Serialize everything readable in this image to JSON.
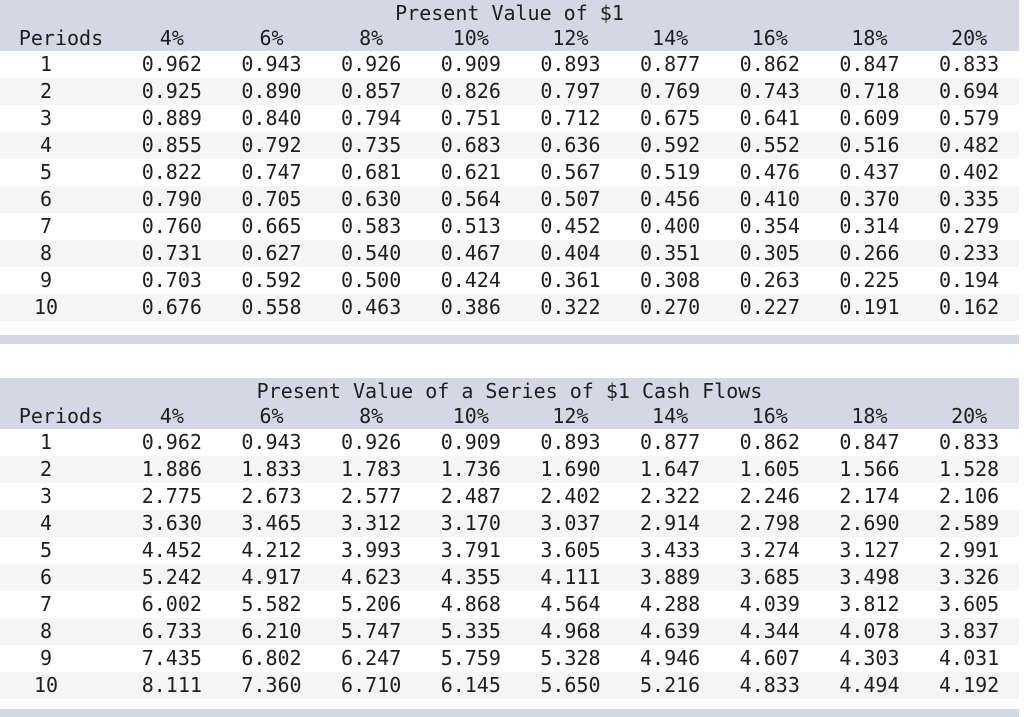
{
  "colors": {
    "header_bg": "#d4d8e4",
    "row_alt_bg": "#f5f5f6",
    "row_bg": "#ffffff",
    "text": "#1e1e1e"
  },
  "tables": [
    {
      "title": "Present Value of $1",
      "columns": [
        "Periods",
        "4%",
        "6%",
        "8%",
        "10%",
        "12%",
        "14%",
        "16%",
        "18%",
        "20%"
      ],
      "rows": [
        [
          "1",
          "0.962",
          "0.943",
          "0.926",
          "0.909",
          "0.893",
          "0.877",
          "0.862",
          "0.847",
          "0.833"
        ],
        [
          "2",
          "0.925",
          "0.890",
          "0.857",
          "0.826",
          "0.797",
          "0.769",
          "0.743",
          "0.718",
          "0.694"
        ],
        [
          "3",
          "0.889",
          "0.840",
          "0.794",
          "0.751",
          "0.712",
          "0.675",
          "0.641",
          "0.609",
          "0.579"
        ],
        [
          "4",
          "0.855",
          "0.792",
          "0.735",
          "0.683",
          "0.636",
          "0.592",
          "0.552",
          "0.516",
          "0.482"
        ],
        [
          "5",
          "0.822",
          "0.747",
          "0.681",
          "0.621",
          "0.567",
          "0.519",
          "0.476",
          "0.437",
          "0.402"
        ],
        [
          "6",
          "0.790",
          "0.705",
          "0.630",
          "0.564",
          "0.507",
          "0.456",
          "0.410",
          "0.370",
          "0.335"
        ],
        [
          "7",
          "0.760",
          "0.665",
          "0.583",
          "0.513",
          "0.452",
          "0.400",
          "0.354",
          "0.314",
          "0.279"
        ],
        [
          "8",
          "0.731",
          "0.627",
          "0.540",
          "0.467",
          "0.404",
          "0.351",
          "0.305",
          "0.266",
          "0.233"
        ],
        [
          "9",
          "0.703",
          "0.592",
          "0.500",
          "0.424",
          "0.361",
          "0.308",
          "0.263",
          "0.225",
          "0.194"
        ],
        [
          "10",
          "0.676",
          "0.558",
          "0.463",
          "0.386",
          "0.322",
          "0.270",
          "0.227",
          "0.191",
          "0.162"
        ]
      ]
    },
    {
      "title": "Present Value of a Series of $1 Cash Flows",
      "columns": [
        "Periods",
        "4%",
        "6%",
        "8%",
        "10%",
        "12%",
        "14%",
        "16%",
        "18%",
        "20%"
      ],
      "rows": [
        [
          "1",
          "0.962",
          "0.943",
          "0.926",
          "0.909",
          "0.893",
          "0.877",
          "0.862",
          "0.847",
          "0.833"
        ],
        [
          "2",
          "1.886",
          "1.833",
          "1.783",
          "1.736",
          "1.690",
          "1.647",
          "1.605",
          "1.566",
          "1.528"
        ],
        [
          "3",
          "2.775",
          "2.673",
          "2.577",
          "2.487",
          "2.402",
          "2.322",
          "2.246",
          "2.174",
          "2.106"
        ],
        [
          "4",
          "3.630",
          "3.465",
          "3.312",
          "3.170",
          "3.037",
          "2.914",
          "2.798",
          "2.690",
          "2.589"
        ],
        [
          "5",
          "4.452",
          "4.212",
          "3.993",
          "3.791",
          "3.605",
          "3.433",
          "3.274",
          "3.127",
          "2.991"
        ],
        [
          "6",
          "5.242",
          "4.917",
          "4.623",
          "4.355",
          "4.111",
          "3.889",
          "3.685",
          "3.498",
          "3.326"
        ],
        [
          "7",
          "6.002",
          "5.582",
          "5.206",
          "4.868",
          "4.564",
          "4.288",
          "4.039",
          "3.812",
          "3.605"
        ],
        [
          "8",
          "6.733",
          "6.210",
          "5.747",
          "5.335",
          "4.968",
          "4.639",
          "4.344",
          "4.078",
          "3.837"
        ],
        [
          "9",
          "7.435",
          "6.802",
          "6.247",
          "5.759",
          "5.328",
          "4.946",
          "4.607",
          "4.303",
          "4.031"
        ],
        [
          "10",
          "8.111",
          "7.360",
          "6.710",
          "6.145",
          "5.650",
          "5.216",
          "4.833",
          "4.494",
          "4.192"
        ]
      ]
    }
  ]
}
